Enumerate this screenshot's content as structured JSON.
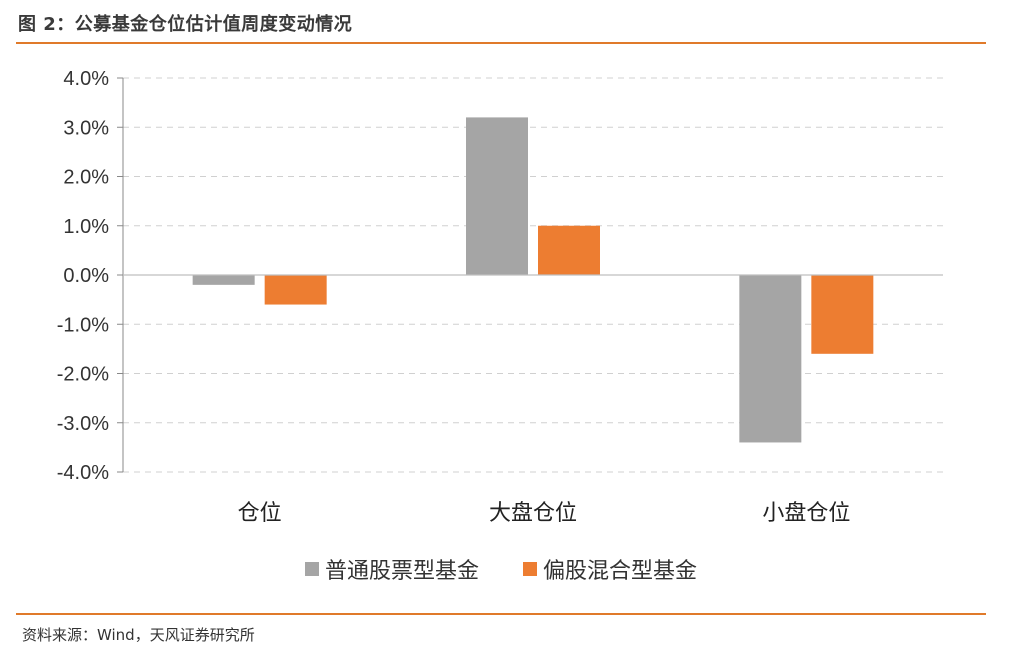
{
  "figure_title": "图 2：公募基金仓位估计值周度变动情况",
  "source_text": "资料来源：Wind，天风证券研究所",
  "colors": {
    "accent_rule": "#e07a2a",
    "series_gray": "#a5a5a5",
    "series_orange": "#ed7d31",
    "grid": "#d0d0d0"
  },
  "chart_data": {
    "type": "bar",
    "title": "",
    "xlabel": "",
    "ylabel": "",
    "categories": [
      "仓位",
      "大盘仓位",
      "小盘仓位"
    ],
    "series": [
      {
        "name": "普通股票型基金",
        "color": "#a5a5a5",
        "values": [
          -0.2,
          3.2,
          -3.4
        ]
      },
      {
        "name": "偏股混合型基金",
        "color": "#ed7d31",
        "values": [
          -0.6,
          1.0,
          -1.6
        ]
      }
    ],
    "ylim": [
      -4.0,
      4.0
    ],
    "yticks": [
      "4.0%",
      "3.0%",
      "2.0%",
      "1.0%",
      "0.0%",
      "-1.0%",
      "-2.0%",
      "-3.0%",
      "-4.0%"
    ],
    "ytick_values": [
      4,
      3,
      2,
      1,
      0,
      -1,
      -2,
      -3,
      -4
    ],
    "grid": true,
    "grid_style": "dashed",
    "legend_position": "bottom"
  }
}
